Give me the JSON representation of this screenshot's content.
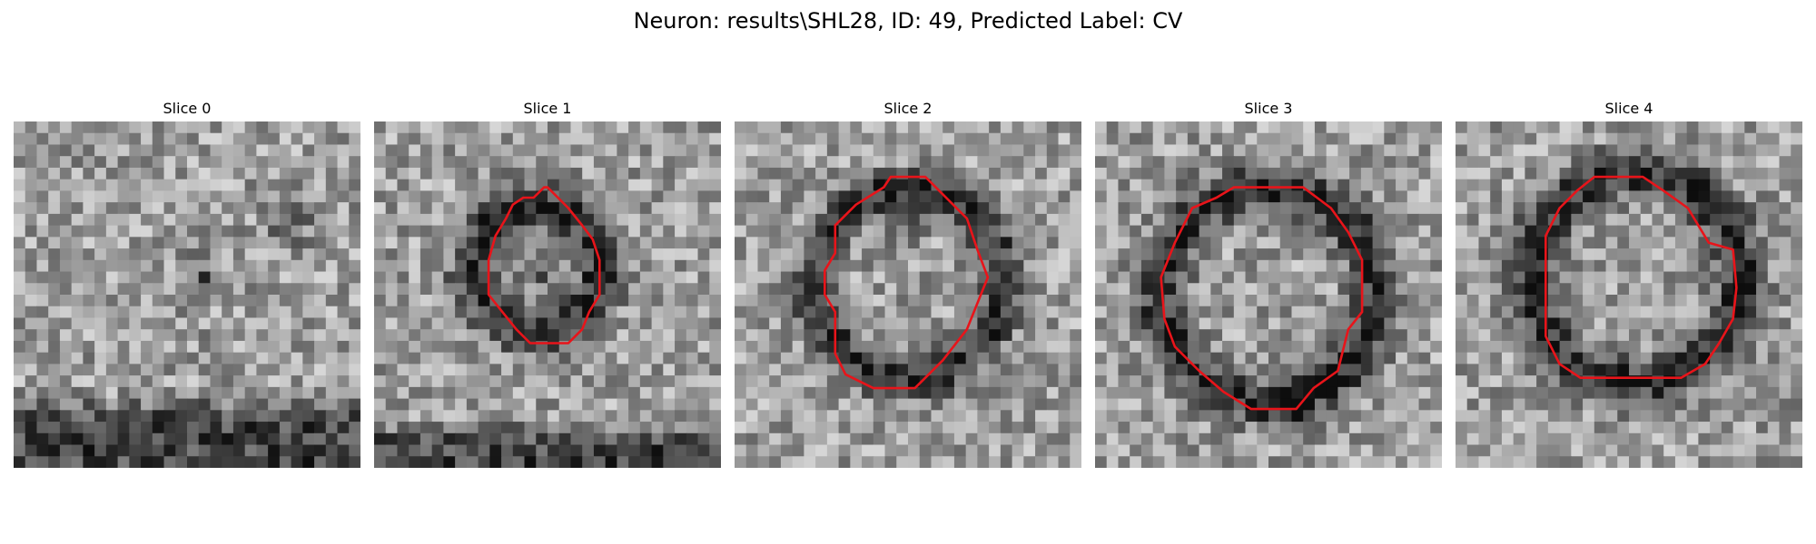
{
  "figure": {
    "title": "Neuron: results\\SHL28, ID: 49, Predicted Label: CV"
  },
  "panels": [
    {
      "title": "Slice 0",
      "has_contour": false,
      "contour": []
    },
    {
      "title": "Slice 1",
      "has_contour": true,
      "contour": [
        [
          0.5,
          0.19
        ],
        [
          0.53,
          0.22
        ],
        [
          0.56,
          0.25
        ],
        [
          0.6,
          0.3
        ],
        [
          0.63,
          0.34
        ],
        [
          0.65,
          0.4
        ],
        [
          0.65,
          0.5
        ],
        [
          0.62,
          0.55
        ],
        [
          0.6,
          0.6
        ],
        [
          0.56,
          0.64
        ],
        [
          0.45,
          0.64
        ],
        [
          0.41,
          0.6
        ],
        [
          0.37,
          0.55
        ],
        [
          0.33,
          0.5
        ],
        [
          0.33,
          0.4
        ],
        [
          0.35,
          0.33
        ],
        [
          0.38,
          0.28
        ],
        [
          0.4,
          0.24
        ],
        [
          0.43,
          0.22
        ],
        [
          0.46,
          0.22
        ],
        [
          0.49,
          0.19
        ]
      ]
    },
    {
      "title": "Slice 2",
      "has_contour": true,
      "contour": [
        [
          0.45,
          0.16
        ],
        [
          0.55,
          0.16
        ],
        [
          0.6,
          0.21
        ],
        [
          0.67,
          0.28
        ],
        [
          0.7,
          0.37
        ],
        [
          0.73,
          0.45
        ],
        [
          0.71,
          0.5
        ],
        [
          0.67,
          0.6
        ],
        [
          0.6,
          0.69
        ],
        [
          0.52,
          0.77
        ],
        [
          0.4,
          0.77
        ],
        [
          0.32,
          0.73
        ],
        [
          0.29,
          0.67
        ],
        [
          0.29,
          0.55
        ],
        [
          0.26,
          0.5
        ],
        [
          0.26,
          0.43
        ],
        [
          0.29,
          0.38
        ],
        [
          0.29,
          0.3
        ],
        [
          0.35,
          0.24
        ],
        [
          0.43,
          0.19
        ]
      ]
    },
    {
      "title": "Slice 3",
      "has_contour": true,
      "contour": [
        [
          0.4,
          0.19
        ],
        [
          0.6,
          0.19
        ],
        [
          0.68,
          0.25
        ],
        [
          0.73,
          0.32
        ],
        [
          0.77,
          0.4
        ],
        [
          0.77,
          0.55
        ],
        [
          0.73,
          0.6
        ],
        [
          0.7,
          0.72
        ],
        [
          0.63,
          0.77
        ],
        [
          0.58,
          0.83
        ],
        [
          0.45,
          0.83
        ],
        [
          0.37,
          0.78
        ],
        [
          0.3,
          0.72
        ],
        [
          0.23,
          0.65
        ],
        [
          0.2,
          0.57
        ],
        [
          0.19,
          0.45
        ],
        [
          0.23,
          0.35
        ],
        [
          0.28,
          0.25
        ],
        [
          0.35,
          0.22
        ]
      ]
    },
    {
      "title": "Slice 4",
      "has_contour": true,
      "contour": [
        [
          0.4,
          0.16
        ],
        [
          0.54,
          0.16
        ],
        [
          0.6,
          0.2
        ],
        [
          0.67,
          0.25
        ],
        [
          0.7,
          0.3
        ],
        [
          0.73,
          0.35
        ],
        [
          0.8,
          0.37
        ],
        [
          0.81,
          0.48
        ],
        [
          0.8,
          0.57
        ],
        [
          0.76,
          0.64
        ],
        [
          0.72,
          0.7
        ],
        [
          0.65,
          0.74
        ],
        [
          0.36,
          0.74
        ],
        [
          0.3,
          0.7
        ],
        [
          0.26,
          0.62
        ],
        [
          0.26,
          0.45
        ],
        [
          0.26,
          0.33
        ],
        [
          0.3,
          0.25
        ],
        [
          0.35,
          0.2
        ]
      ]
    }
  ],
  "colors": {
    "contour": "#e8141a",
    "background": "#ffffff"
  },
  "image": {
    "grid_size": 30,
    "colormap": "gray"
  }
}
